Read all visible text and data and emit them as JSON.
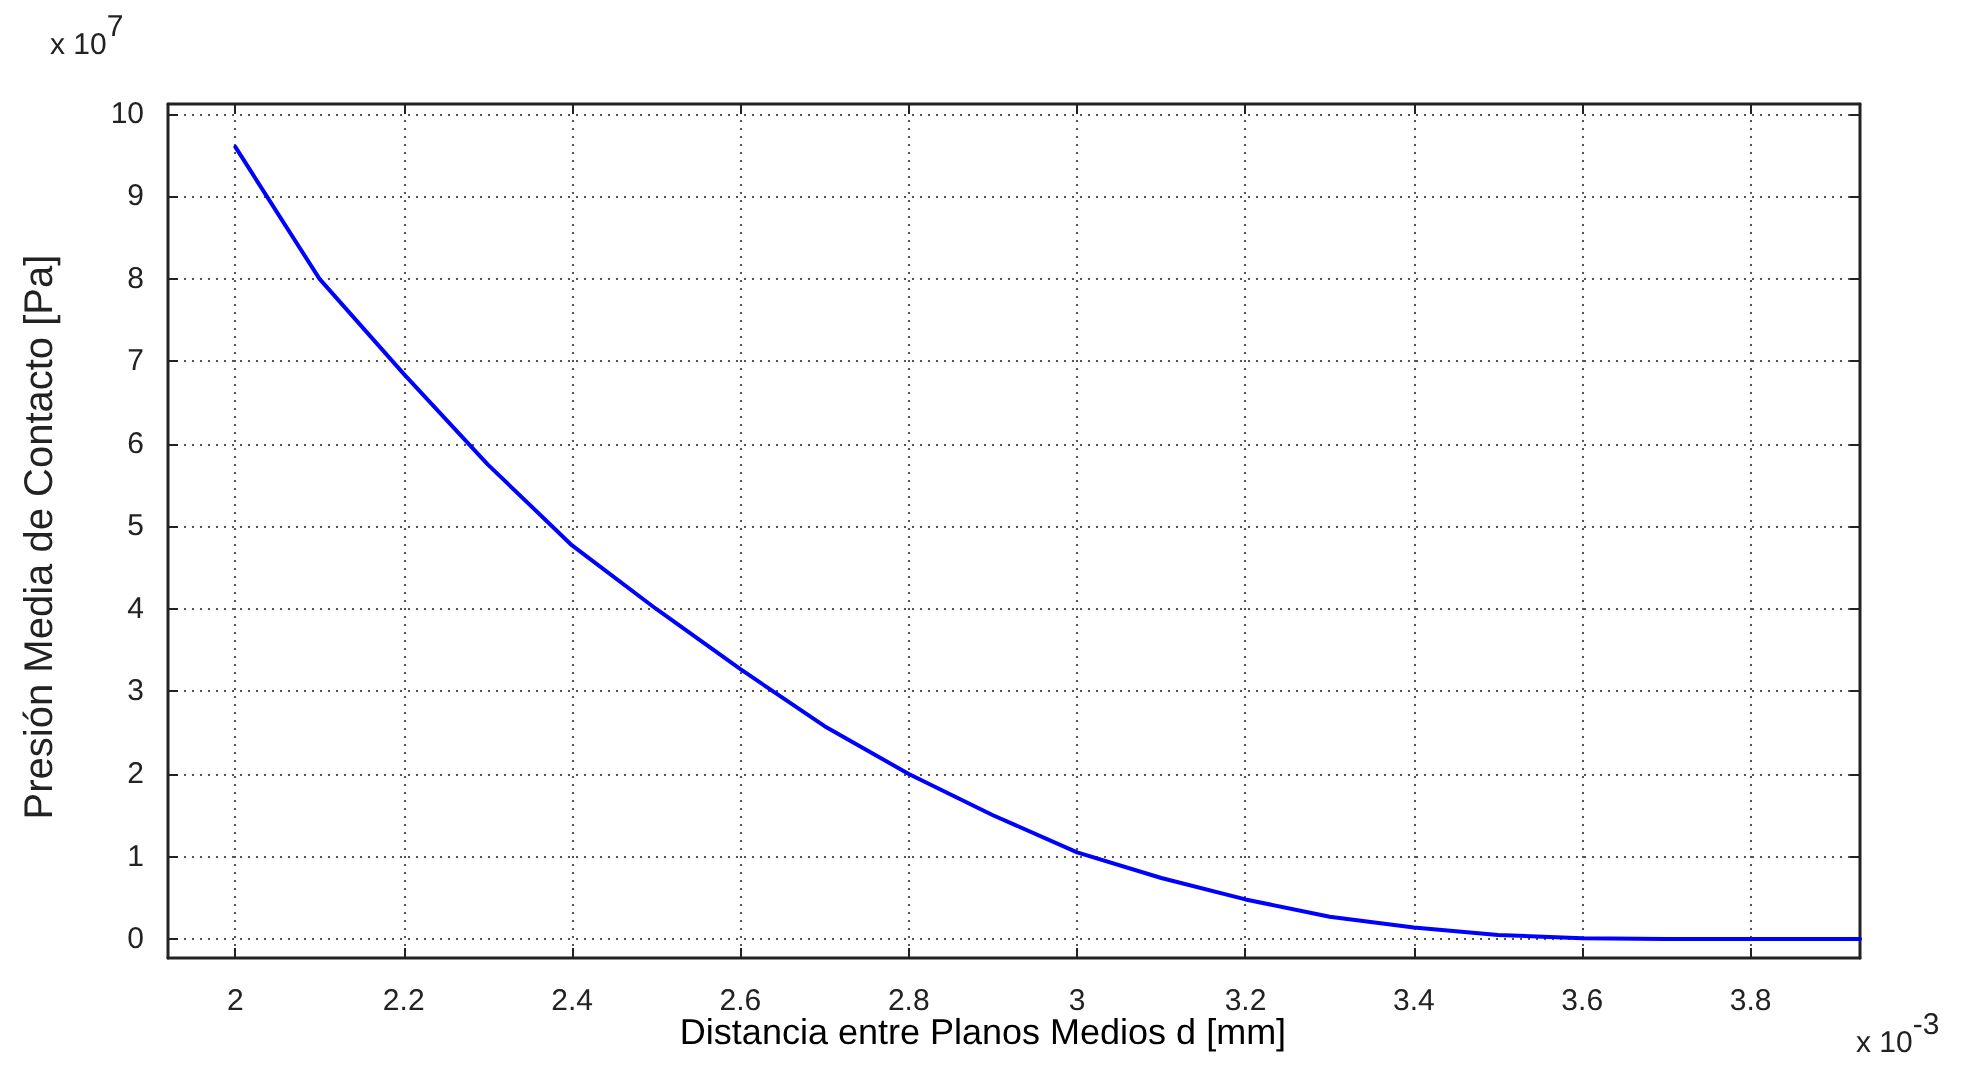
{
  "chart_data": {
    "type": "line",
    "xlabel": "Distancia entre Planos Medios d [mm]",
    "ylabel": "Presión Media de Contacto [Pa]",
    "annotations": [
      "x 10$^{7}$",
      "x 10$^{-3}$"
    ],
    "x": [
      2,
      2.1,
      2.2,
      2.3,
      2.4,
      2.5,
      2.6,
      2.7,
      2.8,
      2.9,
      3,
      3.1,
      3.2,
      3.3,
      3.4,
      3.5,
      3.6,
      3.7,
      3.8,
      3.93
    ],
    "series": [
      {
        "color": "#0000ff",
        "values": [
          9.6,
          8.0,
          6.85,
          5.75,
          4.77,
          4.0,
          3.27,
          2.58,
          2.0,
          1.5,
          1.05,
          0.74,
          0.48,
          0.27,
          0.14,
          0.05,
          0.01,
          0,
          0,
          0
        ]
      }
    ],
    "xlim": [
      1.92,
      3.93
    ],
    "xticks": [
      2,
      2.2,
      2.4,
      2.6,
      2.8,
      3,
      3.2,
      3.4,
      3.6,
      3.8
    ],
    "ylim": [
      -0.23,
      10.12
    ],
    "yticks": [
      0,
      1,
      2,
      3,
      4,
      5,
      6,
      7,
      8,
      9,
      10
    ],
    "grid": true,
    "marker": "none",
    "line_style": "solid"
  }
}
